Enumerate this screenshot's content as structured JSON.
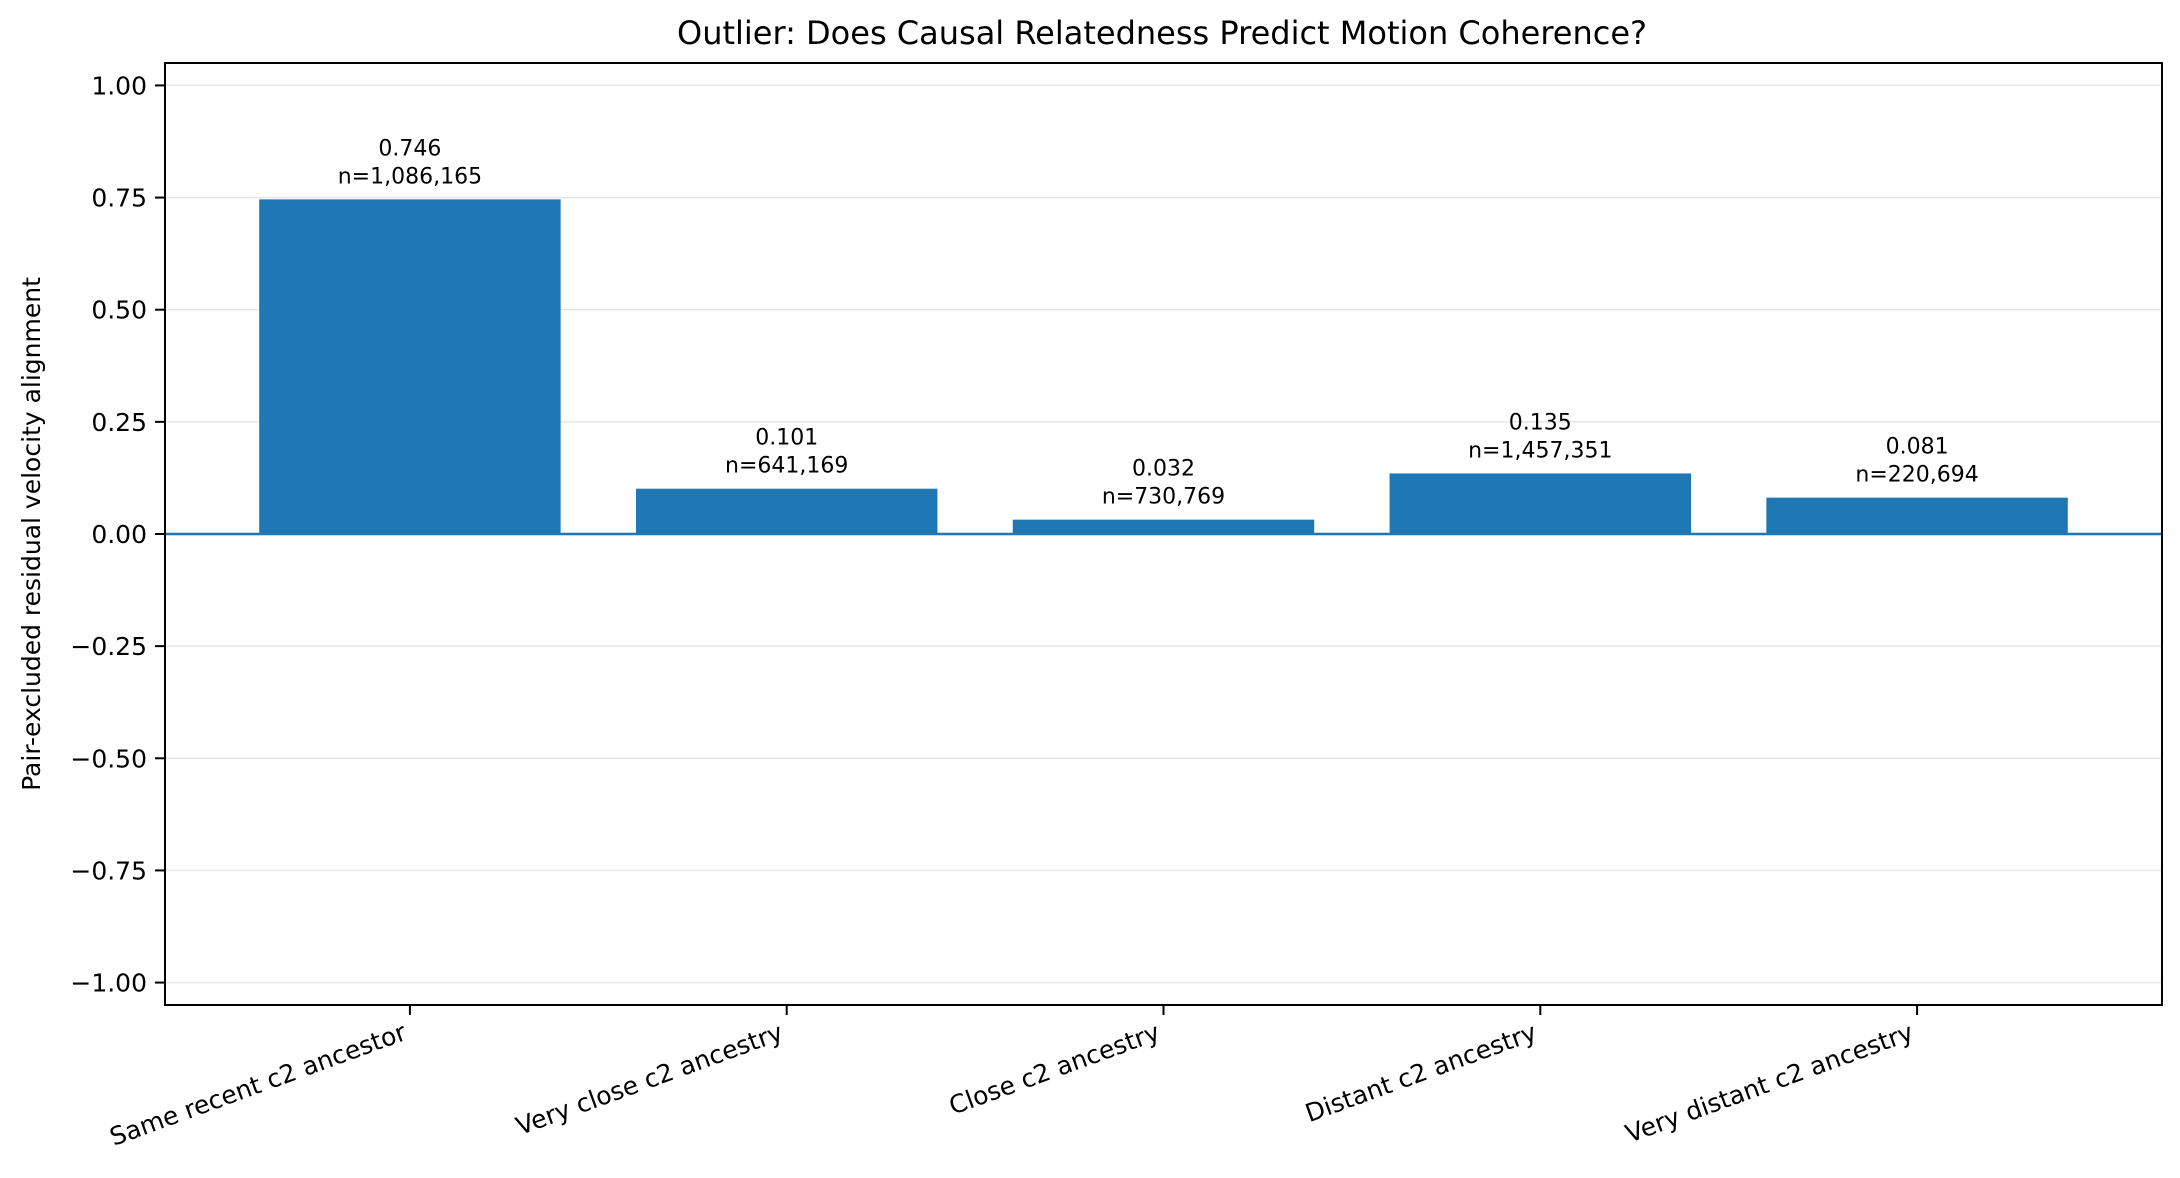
{
  "chart_data": {
    "type": "bar",
    "title": "Outlier: Does Causal Relatedness Predict Motion Coherence?",
    "xlabel": "",
    "ylabel": "Pair-excluded residual velocity alignment",
    "categories": [
      "Same recent c2 ancestor",
      "Very close c2 ancestry",
      "Close c2 ancestry",
      "Distant c2 ancestry",
      "Very distant c2 ancestry"
    ],
    "values": [
      0.746,
      0.101,
      0.032,
      0.135,
      0.081
    ],
    "value_labels": [
      "0.746",
      "0.101",
      "0.032",
      "0.135",
      "0.081"
    ],
    "n_labels": [
      "n=1,086,165",
      "n=641,169",
      "n=730,769",
      "n=1,457,351",
      "n=220,694"
    ],
    "ylim": [
      -1.05,
      1.05
    ],
    "yticks": [
      -1.0,
      -0.75,
      -0.5,
      -0.25,
      0.0,
      0.25,
      0.5,
      0.75,
      1.0
    ],
    "ytick_labels": [
      "−1.00",
      "−0.75",
      "−0.50",
      "−0.25",
      "0.00",
      "0.25",
      "0.50",
      "0.75",
      "1.00"
    ],
    "grid": "horizontal",
    "zero_line": true,
    "colors": {
      "bar": "#1f77b4",
      "zero_line": "#1f77b4",
      "grid": "#e6e6e6",
      "axes": "#000000"
    }
  }
}
